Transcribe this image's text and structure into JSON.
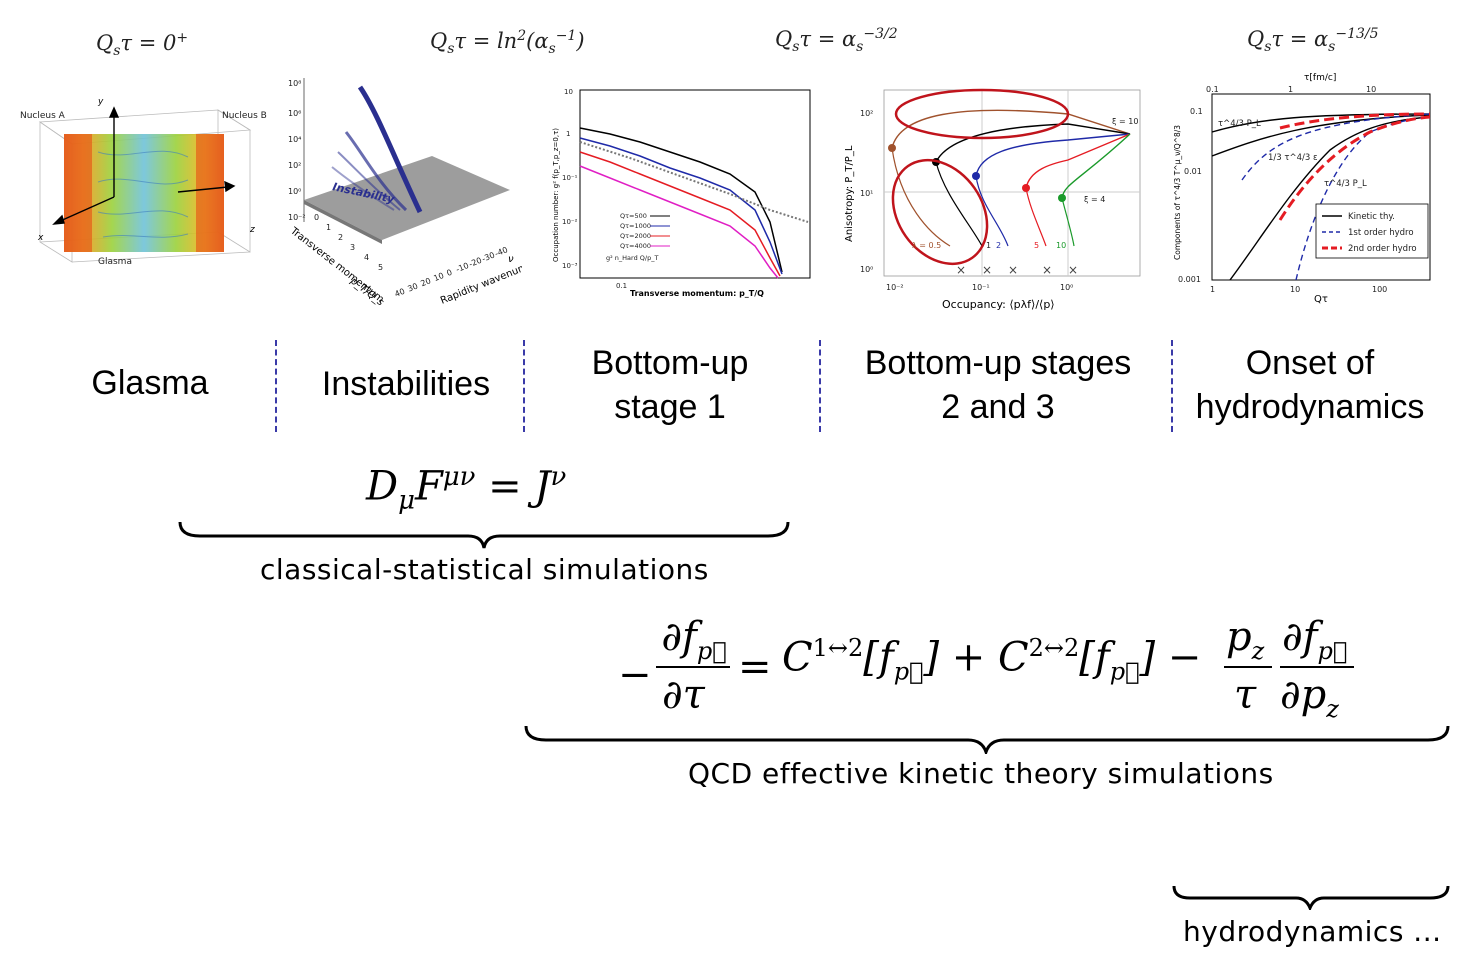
{
  "time_labels": [
    "Q_sτ = 0⁺",
    "Q_sτ = ln²(α_s⁻¹)",
    "Q_sτ = α_s^−3/2",
    "Q_sτ = α_s^−13/5"
  ],
  "stages": [
    {
      "label": "Glasma"
    },
    {
      "label": "Instabilities"
    },
    {
      "label": "Bottom-up\nstage 1"
    },
    {
      "label": "Bottom-up stages\n2 and 3"
    },
    {
      "label": "Onset of\nhydrodynamics"
    }
  ],
  "panel_glasma": {
    "nucleus_a": "Nucleus A",
    "nucleus_b": "Nucleus B",
    "glasma": "Glasma",
    "axis_x": "x",
    "axis_y": "y",
    "axis_z": "z"
  },
  "panel_instab": {
    "label": "Instability",
    "axis1": "Transverse momentum",
    "axis1b": "p_T/Q_s",
    "axis2": "Rapidity wavenumber",
    "axis2b": "ν",
    "yticks": [
      "10⁸",
      "10⁶",
      "10⁴",
      "10²",
      "10⁰",
      "10⁻²"
    ],
    "xticks": [
      "0",
      "1",
      "2",
      "3",
      "4",
      "5"
    ],
    "zticks": [
      "40",
      "30",
      "20",
      "10",
      "0",
      "-10",
      "-20",
      "-30",
      "-40"
    ]
  },
  "panel_bu1": {
    "ylabel": "Occupation number:  g² f(p_T,p_z=0,τ)",
    "xlabel": "Transverse momentum:   p_T/Q",
    "legend": [
      "Qτ=500",
      "Qτ=1000",
      "Qτ=2000",
      "Qτ=4000",
      "g² n_Hard Q/p_T"
    ],
    "yticks": [
      "10",
      "1",
      "10⁻¹",
      "10⁻²",
      "10⁻³"
    ],
    "xtick": "0.1"
  },
  "panel_bu23": {
    "ylabel": "Anisotropy:  P_T/P_L",
    "xlabel": "Occupancy:  ⟨pλf⟩/⟨p⟩",
    "xticks": [
      "10⁻²",
      "10⁻¹",
      "10⁰"
    ],
    "yticks": [
      "10²",
      "10¹",
      "10⁰"
    ],
    "xi10": "ξ = 10",
    "xi4": "ξ = 4",
    "lambda_labels": [
      "λ = 0.5",
      "1",
      "2",
      "5",
      "10"
    ]
  },
  "panel_hydro": {
    "ylabel": "Components of τ^4/3 T^μ_ν/Q^8/3",
    "xlabel": "Qτ",
    "top_axis": "τ[fm/c]",
    "top_ticks": [
      "0.1",
      "1",
      "10"
    ],
    "xticks": [
      "1",
      "10",
      "100"
    ],
    "yticks": [
      "0.1",
      "0.01",
      "0.001"
    ],
    "curve_pl": "τ^4/3 P_L",
    "curve_eps": "1/3 τ^4/3 ε",
    "curve_pl2": "τ^4/3 P_L",
    "legend": [
      "Kinetic thy.",
      "1st order hydro",
      "2nd order hydro"
    ]
  },
  "eq1": {
    "text": "D_μF^μν = J^ν",
    "caption": "classical-statistical simulations"
  },
  "eq2": {
    "caption": "QCD effective kinetic theory simulations"
  },
  "eq3": {
    "caption": "hydrodynamics ..."
  },
  "colors": {
    "separator": "#3a3aa8",
    "ellipse": "#c0141c",
    "blue": "#1f2aa8",
    "red": "#e51c23"
  }
}
